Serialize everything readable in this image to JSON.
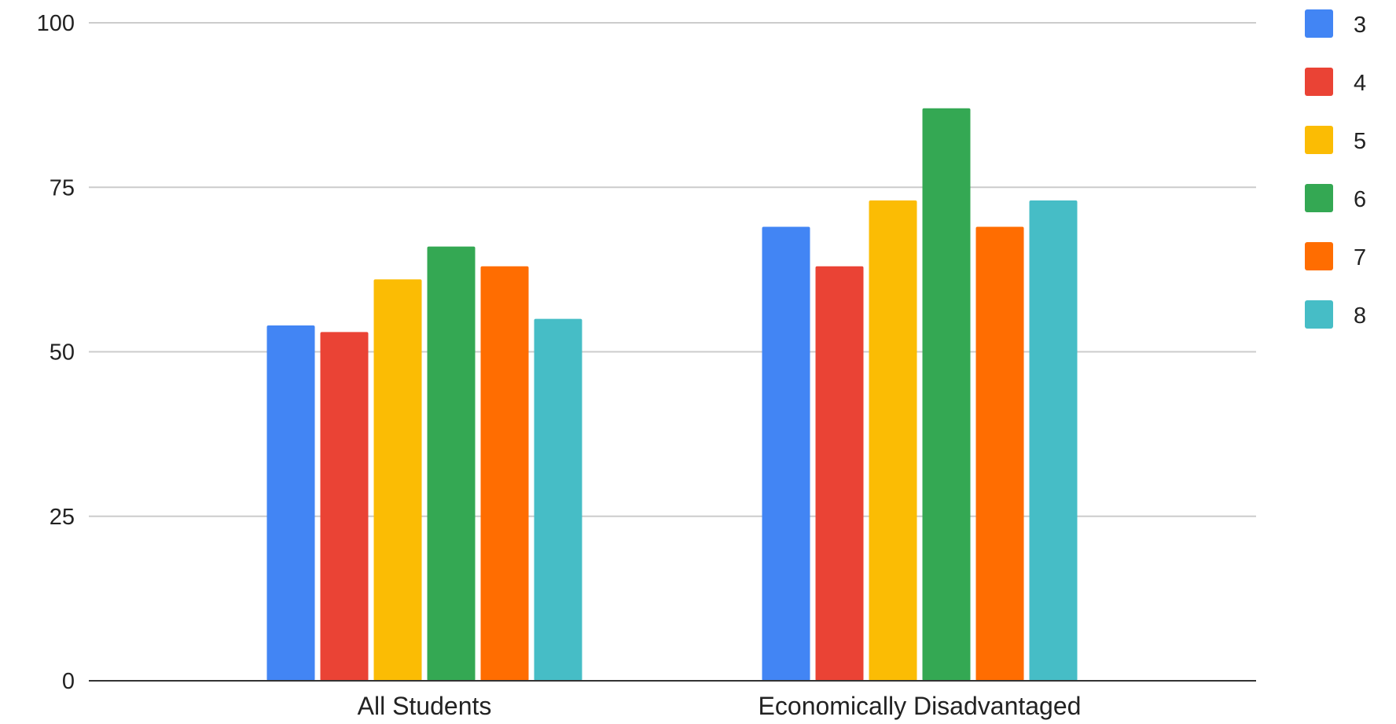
{
  "chart_data": {
    "type": "bar",
    "title": "",
    "xlabel": "",
    "ylabel": "",
    "categories": [
      "All Students",
      "Economically Disadvantaged"
    ],
    "series": [
      {
        "name": "3",
        "color": "#4285f4",
        "values": [
          54,
          69
        ]
      },
      {
        "name": "4",
        "color": "#ea4335",
        "values": [
          53,
          63
        ]
      },
      {
        "name": "5",
        "color": "#fbbc04",
        "values": [
          61,
          73
        ]
      },
      {
        "name": "6",
        "color": "#34a853",
        "values": [
          66,
          87
        ]
      },
      {
        "name": "7",
        "color": "#ff6d01",
        "values": [
          63,
          69
        ]
      },
      {
        "name": "8",
        "color": "#46bdc6",
        "values": [
          55,
          73
        ]
      }
    ],
    "ylim": [
      0,
      100
    ],
    "yticks": [
      "0",
      "25",
      "50",
      "75",
      "100"
    ],
    "grid": true,
    "legend_position": "right"
  }
}
